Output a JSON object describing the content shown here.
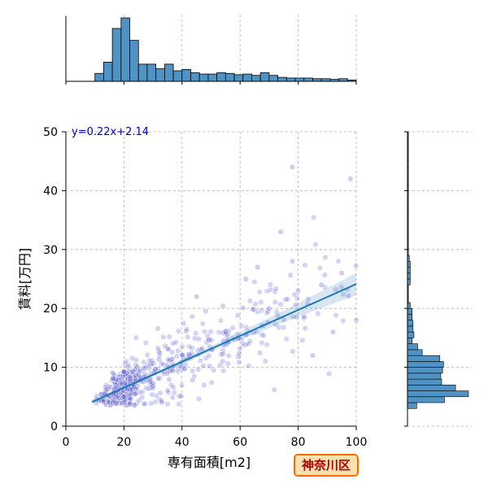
{
  "chart_data": {
    "type": "scatter",
    "xlabel": "専有面積[m2]",
    "ylabel": "賃料[万円]",
    "xlim": [
      0,
      100
    ],
    "ylim": [
      0,
      50
    ],
    "xticks": [
      0,
      20,
      40,
      60,
      80,
      100
    ],
    "yticks": [
      0,
      10,
      20,
      30,
      40,
      50
    ],
    "grid": true,
    "regression": {
      "equation": "y=0.22x+2.14",
      "slope": 0.22,
      "intercept": 2.14,
      "x_range": [
        9,
        100
      ]
    },
    "badge": "神奈川区",
    "colors": {
      "points": "#3b3bc8",
      "regression": "#1f77b4",
      "bars": "#4f93c4"
    },
    "outlier_points": [
      {
        "x": 78,
        "y": 44
      },
      {
        "x": 98,
        "y": 42
      },
      {
        "x": 74,
        "y": 33
      },
      {
        "x": 78,
        "y": 28
      },
      {
        "x": 95,
        "y": 26
      },
      {
        "x": 88,
        "y": 24
      },
      {
        "x": 62,
        "y": 25
      },
      {
        "x": 45,
        "y": 22
      },
      {
        "x": 100,
        "y": 18
      },
      {
        "x": 92,
        "y": 16
      },
      {
        "x": 85,
        "y": 12
      },
      {
        "x": 70,
        "y": 20
      },
      {
        "x": 55,
        "y": 16
      },
      {
        "x": 66,
        "y": 27
      },
      {
        "x": 80,
        "y": 23
      }
    ],
    "x_histogram": {
      "bin_edges": [
        10,
        13,
        16,
        19,
        22,
        25,
        28,
        31,
        34,
        37,
        40,
        43,
        46,
        49,
        52,
        55,
        58,
        61,
        64,
        67,
        70,
        73,
        76,
        79,
        82,
        85,
        88,
        91,
        94,
        97,
        100
      ],
      "counts": [
        12,
        29,
        80,
        96,
        62,
        26,
        26,
        19,
        26,
        16,
        18,
        13,
        11,
        11,
        13,
        12,
        10,
        11,
        9,
        13,
        9,
        6,
        5,
        5,
        5,
        4,
        4,
        3,
        4,
        2
      ]
    },
    "y_histogram": {
      "bin_edges": [
        3,
        4,
        5,
        6,
        7,
        8,
        9,
        10,
        11,
        12,
        13,
        14,
        15,
        16,
        17,
        18,
        19,
        20,
        21,
        22,
        23,
        24,
        25,
        26,
        27,
        28,
        29,
        30,
        31,
        32,
        33,
        34,
        35,
        36,
        37,
        38,
        39,
        40,
        41,
        42,
        43,
        44,
        45,
        46,
        47,
        48,
        49,
        50
      ],
      "counts": [
        10,
        40,
        66,
        52,
        37,
        36,
        38,
        39,
        35,
        16,
        11,
        5,
        7,
        6,
        6,
        5,
        5,
        3,
        1,
        1,
        1,
        3,
        3,
        3,
        3,
        2,
        1,
        1,
        1,
        1,
        1,
        1,
        1,
        1,
        1,
        1,
        1,
        1,
        1,
        1,
        1,
        1,
        1,
        1,
        1,
        1,
        1
      ]
    }
  }
}
